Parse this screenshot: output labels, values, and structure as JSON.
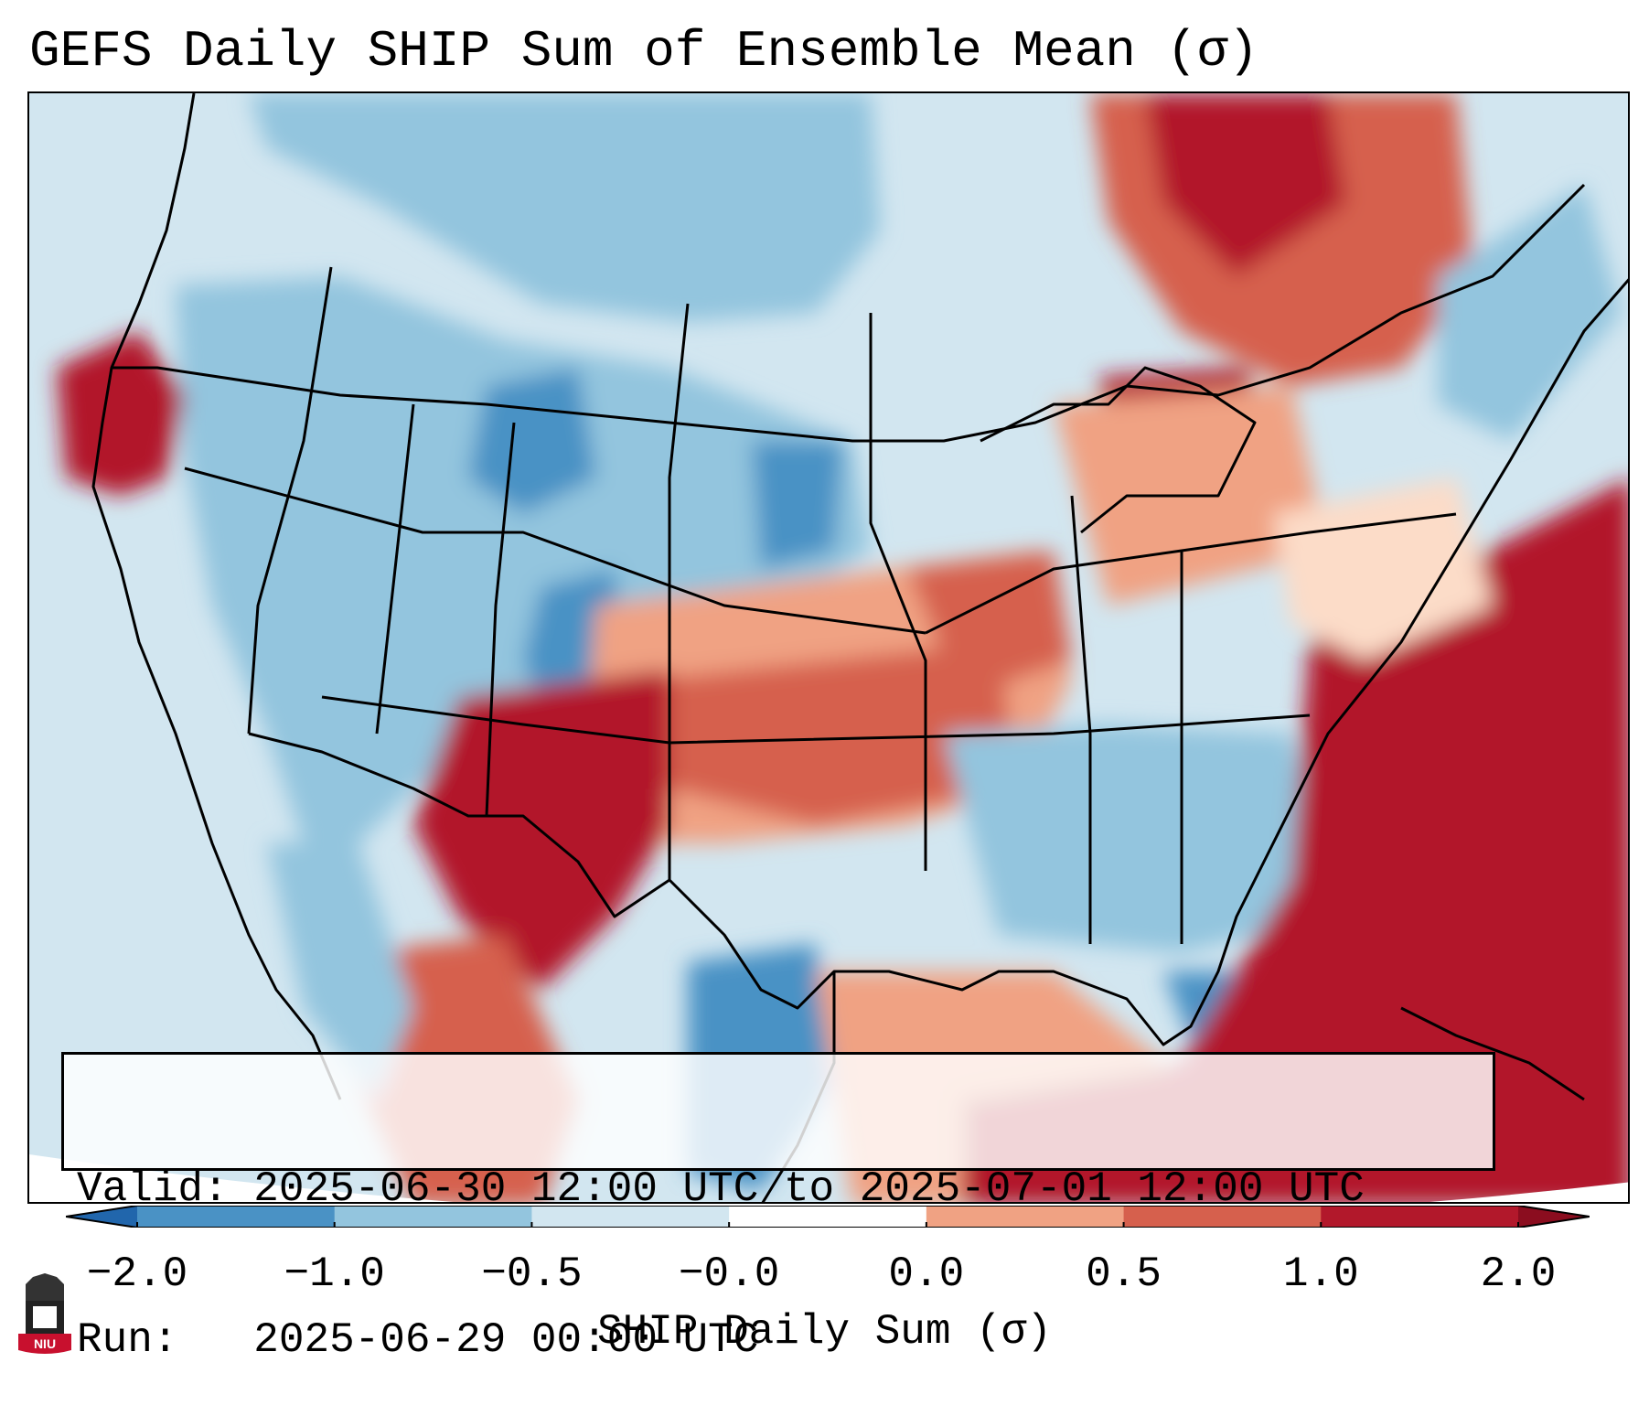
{
  "title": "GEFS Daily SHIP Sum of Ensemble Mean (σ)",
  "info": {
    "valid_label": "Valid:",
    "valid_value": "2025-06-30 12:00 UTC to 2025-07-01 12:00 UTC",
    "run_label": "Run:",
    "run_value": "2025-06-29 00:00 UTC"
  },
  "colorbar": {
    "label": "SHIP Daily Sum (σ)",
    "tick_labels": [
      "−2.0",
      "−1.0",
      "−0.5",
      "−0.0",
      "0.0",
      "0.5",
      "1.0",
      "2.0"
    ],
    "colors": [
      "#4a92c5",
      "#93c5de",
      "#d2e6f0",
      "#f7f7f7",
      "#fcdcc8",
      "#f0a283",
      "#d6604d",
      "#b2182b"
    ],
    "under_color": "#2166ac",
    "over_color": "#8b0d1f"
  },
  "map": {
    "background_color": "#d2e6f0",
    "outside_color": "#ffffff"
  },
  "logo": {
    "text": "NIU",
    "color": "#c8102e"
  }
}
